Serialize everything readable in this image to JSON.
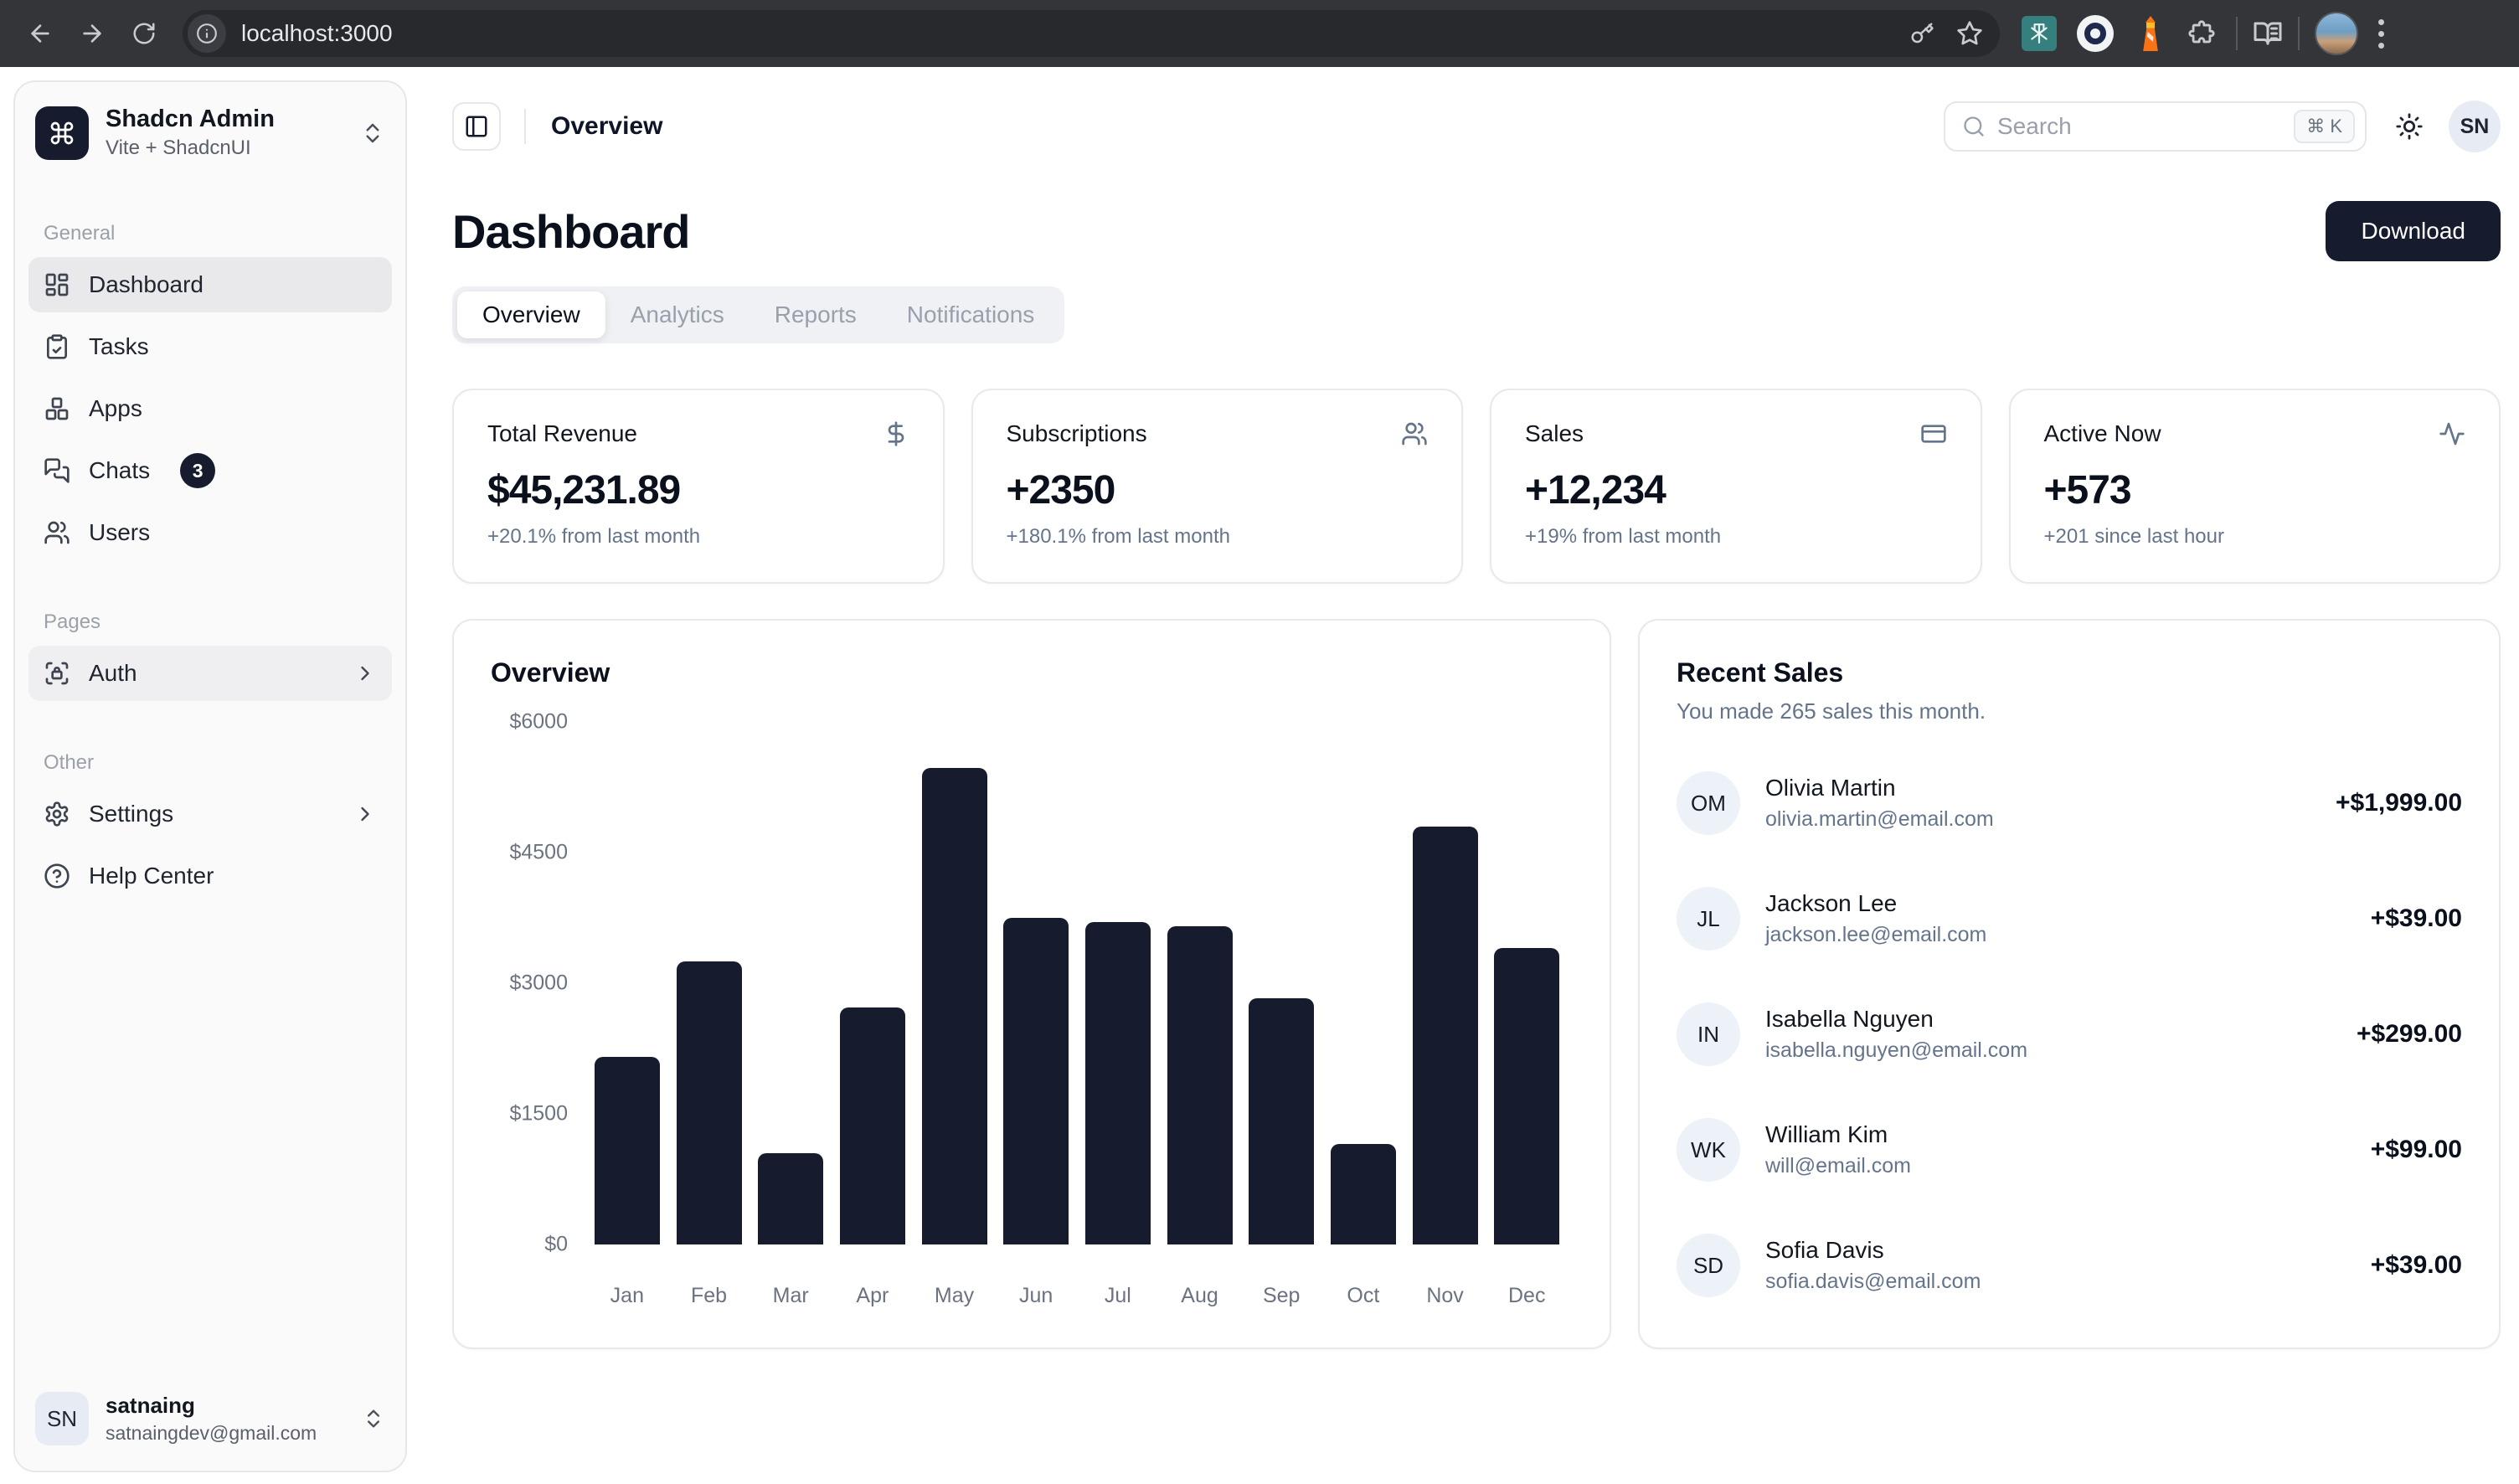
{
  "browser": {
    "url": "localhost:3000"
  },
  "sidebar": {
    "workspace": {
      "name": "Shadcn Admin",
      "subtitle": "Vite + ShadcnUI"
    },
    "sections": {
      "general": "General",
      "pages": "Pages",
      "other": "Other"
    },
    "items": {
      "dashboard": "Dashboard",
      "tasks": "Tasks",
      "apps": "Apps",
      "chats": "Chats",
      "chats_badge": "3",
      "users": "Users",
      "auth": "Auth",
      "settings": "Settings",
      "help_center": "Help Center"
    },
    "user": {
      "initials": "SN",
      "name": "satnaing",
      "email": "satnaingdev@gmail.com"
    }
  },
  "header": {
    "breadcrumb": "Overview",
    "search_placeholder": "Search",
    "search_shortcut": "⌘ K",
    "avatar_initials": "SN"
  },
  "dashboard": {
    "title": "Dashboard",
    "download_label": "Download",
    "tabs": [
      "Overview",
      "Analytics",
      "Reports",
      "Notifications"
    ],
    "stats": [
      {
        "label": "Total Revenue",
        "value": "$45,231.89",
        "change": "+20.1% from last month",
        "icon": "dollar-sign-icon"
      },
      {
        "label": "Subscriptions",
        "value": "+2350",
        "change": "+180.1% from last month",
        "icon": "users-icon"
      },
      {
        "label": "Sales",
        "value": "+12,234",
        "change": "+19% from last month",
        "icon": "credit-card-icon"
      },
      {
        "label": "Active Now",
        "value": "+573",
        "change": "+201 since last hour",
        "icon": "activity-icon"
      }
    ]
  },
  "chart_data": {
    "type": "bar",
    "title": "Overview",
    "categories": [
      "Jan",
      "Feb",
      "Mar",
      "Apr",
      "May",
      "Jun",
      "Jul",
      "Aug",
      "Sep",
      "Oct",
      "Nov",
      "Dec"
    ],
    "values": [
      2150,
      3250,
      1050,
      2725,
      5475,
      3750,
      3700,
      3650,
      2825,
      1150,
      4800,
      3400
    ],
    "ylim": [
      0,
      6000
    ],
    "yticks": [
      "$0",
      "$1500",
      "$3000",
      "$4500",
      "$6000"
    ],
    "grid": false,
    "legend": false,
    "bar_color": "#161c2e",
    "xlabel": "",
    "ylabel": ""
  },
  "recent_sales": {
    "title": "Recent Sales",
    "subtitle": "You made 265 sales this month.",
    "items": [
      {
        "initials": "OM",
        "name": "Olivia Martin",
        "email": "olivia.martin@email.com",
        "amount": "+$1,999.00"
      },
      {
        "initials": "JL",
        "name": "Jackson Lee",
        "email": "jackson.lee@email.com",
        "amount": "+$39.00"
      },
      {
        "initials": "IN",
        "name": "Isabella Nguyen",
        "email": "isabella.nguyen@email.com",
        "amount": "+$299.00"
      },
      {
        "initials": "WK",
        "name": "William Kim",
        "email": "will@email.com",
        "amount": "+$99.00"
      },
      {
        "initials": "SD",
        "name": "Sofia Davis",
        "email": "sofia.davis@email.com",
        "amount": "+$39.00"
      }
    ]
  },
  "colors": {
    "primary": "#161c2e",
    "muted_text": "#64748b",
    "border": "#e8e9ec",
    "sidebar_bg": "#fafafa",
    "active_item_bg": "#e9e9ec"
  }
}
